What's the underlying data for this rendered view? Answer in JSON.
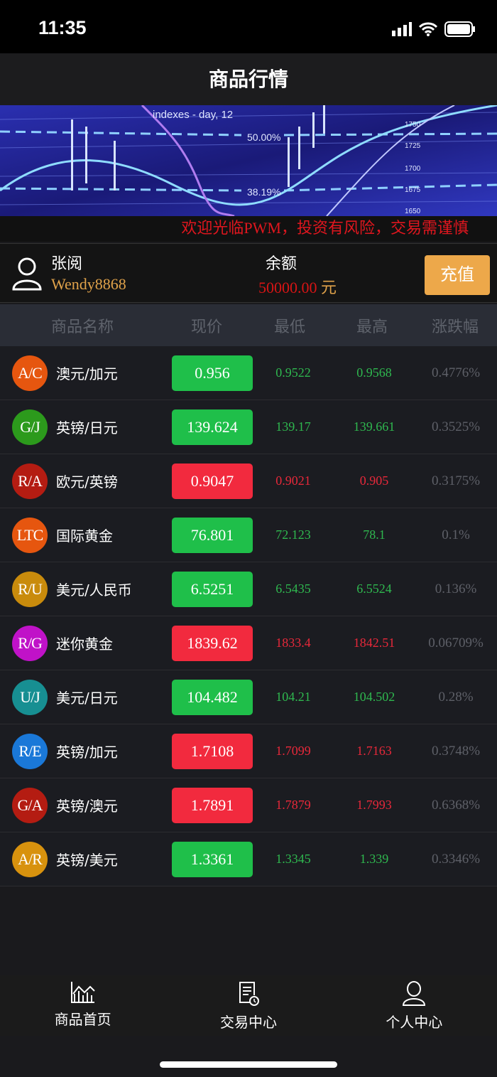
{
  "status": {
    "time": "11:35"
  },
  "header": {
    "title": "商品行情"
  },
  "banner": {
    "caption": "indexes - day, 12",
    "level1": "50.00%",
    "level2": "38.19%",
    "axis": [
      "1750",
      "1725",
      "1700",
      "1675",
      "1650"
    ]
  },
  "marquee": "欢迎光临PWM，投资有风险，交易需谨慎",
  "user": {
    "name": "张阅",
    "id": "Wendy8868",
    "balance_label": "余额",
    "balance": "50000.00",
    "currency": "元",
    "recharge": "充值"
  },
  "table": {
    "headers": [
      "商品名称",
      "现价",
      "最低",
      "最高",
      "涨跌幅"
    ],
    "rows": [
      {
        "code": "A/C",
        "name": "澳元/加元",
        "price": "0.956",
        "low": "0.9522",
        "high": "0.9568",
        "pct": "0.4776%",
        "dir": "up",
        "color": "#e6560f"
      },
      {
        "code": "G/J",
        "name": "英镑/日元",
        "price": "139.624",
        "low": "139.17",
        "high": "139.661",
        "pct": "0.3525%",
        "dir": "up",
        "color": "#2c9a1c"
      },
      {
        "code": "R/A",
        "name": "欧元/英镑",
        "price": "0.9047",
        "low": "0.9021",
        "high": "0.905",
        "pct": "0.3175%",
        "dir": "down",
        "color": "#b41c12"
      },
      {
        "code": "LTC",
        "name": "国际黄金",
        "price": "76.801",
        "low": "72.123",
        "high": "78.1",
        "pct": "0.1%",
        "dir": "up",
        "color": "#e6560f"
      },
      {
        "code": "R/U",
        "name": "美元/人民币",
        "price": "6.5251",
        "low": "6.5435",
        "high": "6.5524",
        "pct": "0.136%",
        "dir": "up",
        "color": "#c98b0c"
      },
      {
        "code": "R/G",
        "name": "迷你黄金",
        "price": "1839.62",
        "low": "1833.4",
        "high": "1842.51",
        "pct": "0.06709%",
        "dir": "down",
        "color": "#c012c8"
      },
      {
        "code": "U/J",
        "name": "美元/日元",
        "price": "104.482",
        "low": "104.21",
        "high": "104.502",
        "pct": "0.28%",
        "dir": "up",
        "color": "#178f92"
      },
      {
        "code": "R/E",
        "name": "英镑/加元",
        "price": "1.7108",
        "low": "1.7099",
        "high": "1.7163",
        "pct": "0.3748%",
        "dir": "down",
        "color": "#1a78d8"
      },
      {
        "code": "G/A",
        "name": "英镑/澳元",
        "price": "1.7891",
        "low": "1.7879",
        "high": "1.7993",
        "pct": "0.6368%",
        "dir": "down",
        "color": "#b41c12"
      },
      {
        "code": "A/R",
        "name": "英镑/美元",
        "price": "1.3361",
        "low": "1.3345",
        "high": "1.339",
        "pct": "0.3346%",
        "dir": "up",
        "color": "#d8920e"
      }
    ]
  },
  "colors": {
    "up": "#1fbf4a",
    "down": "#f22a3e",
    "up_text": "#2fb84f",
    "down_text": "#e8283a",
    "accent": "#eda84a"
  },
  "tabbar": [
    {
      "label": "商品首页",
      "icon": "chart-icon"
    },
    {
      "label": "交易中心",
      "icon": "document-clock-icon"
    },
    {
      "label": "个人中心",
      "icon": "user-icon"
    }
  ]
}
